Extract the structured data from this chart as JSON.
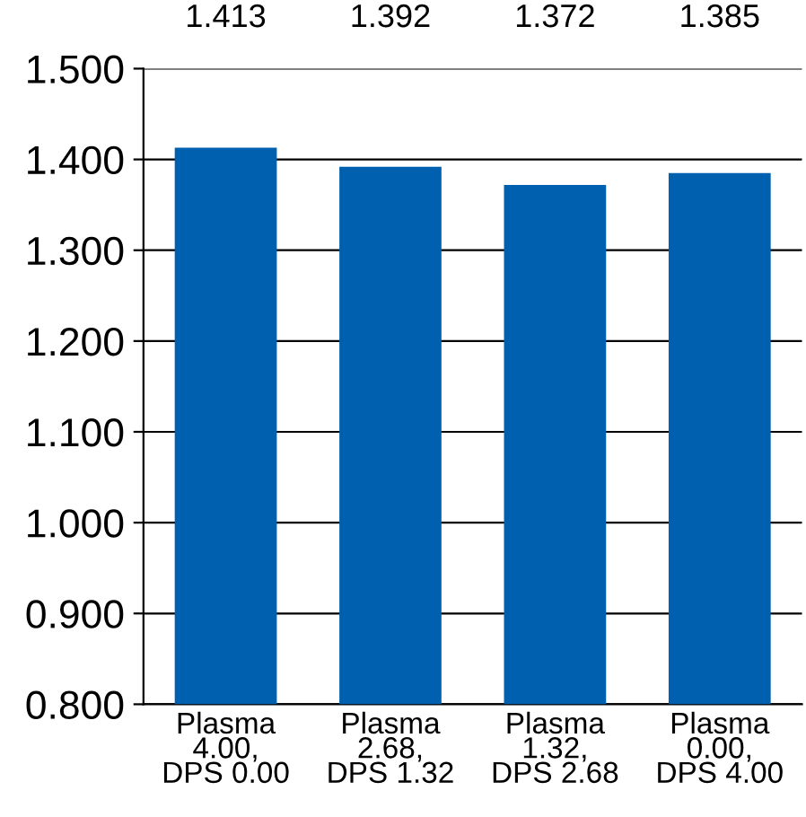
{
  "chart_data": {
    "type": "bar",
    "categories": [
      "Plasma\n4.00,\nDPS 0.00",
      "Plasma\n2.68,\nDPS 1.32",
      "Plasma\n1.32,\nDPS 2.68",
      "Plasma\n0.00,\nDPS 4.00"
    ],
    "values": [
      1.413,
      1.392,
      1.372,
      1.385
    ],
    "color": "#0060b0",
    "ylim": [
      0.8,
      1.5
    ],
    "yticks": [
      {
        "value": 0.8,
        "label": "0.800"
      },
      {
        "value": 0.9,
        "label": "0.900"
      },
      {
        "value": 1.0,
        "label": "1.000"
      },
      {
        "value": 1.1,
        "label": "1.100"
      },
      {
        "value": 1.2,
        "label": "1.200"
      },
      {
        "value": 1.3,
        "label": "1.300"
      },
      {
        "value": 1.4,
        "label": "1.400"
      },
      {
        "value": 1.5,
        "label": "1.500"
      }
    ],
    "grid": "y",
    "data_labels": true
  }
}
